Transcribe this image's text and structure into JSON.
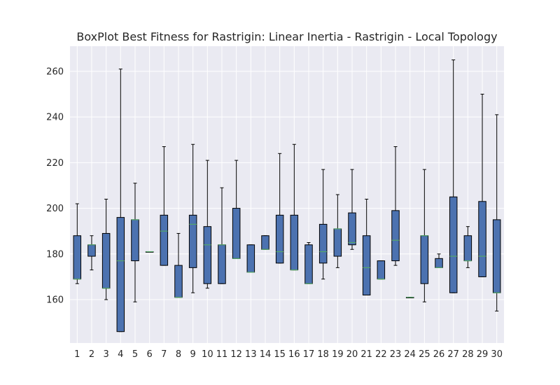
{
  "chart_data": {
    "type": "box",
    "title": "BoxPlot Best Fitness for Rastrigin: Linear Inertia - Rastrigin - Local Topology",
    "xlabel": "",
    "ylabel": "",
    "categories": [
      "1",
      "2",
      "3",
      "4",
      "5",
      "6",
      "7",
      "8",
      "9",
      "10",
      "11",
      "12",
      "13",
      "14",
      "15",
      "16",
      "17",
      "18",
      "19",
      "20",
      "21",
      "22",
      "23",
      "24",
      "25",
      "26",
      "27",
      "28",
      "29",
      "30"
    ],
    "ylim": [
      141,
      271
    ],
    "yticks": [
      160,
      180,
      200,
      220,
      240,
      260
    ],
    "grid": true,
    "boxes": [
      {
        "min": 167,
        "q1": 169,
        "median": 169,
        "q3": 188,
        "max": 202
      },
      {
        "min": 173,
        "q1": 179,
        "median": 184,
        "q3": 184,
        "max": 188
      },
      {
        "min": 160,
        "q1": 165,
        "median": 165,
        "q3": 189,
        "max": 204
      },
      {
        "min": 146,
        "q1": 146,
        "median": 177,
        "q3": 196,
        "max": 261
      },
      {
        "min": 159,
        "q1": 177,
        "median": 195,
        "q3": 195,
        "max": 211
      },
      {
        "min": 181,
        "q1": 181,
        "median": 181,
        "q3": 181,
        "max": 181
      },
      {
        "min": 175,
        "q1": 175,
        "median": 190,
        "q3": 197,
        "max": 227
      },
      {
        "min": 161,
        "q1": 161,
        "median": 161,
        "q3": 175,
        "max": 189
      },
      {
        "min": 163,
        "q1": 174,
        "median": 193,
        "q3": 197,
        "max": 228
      },
      {
        "min": 165,
        "q1": 167,
        "median": 184,
        "q3": 192,
        "max": 221
      },
      {
        "min": 167,
        "q1": 167,
        "median": 184,
        "q3": 184,
        "max": 209
      },
      {
        "min": 178,
        "q1": 178,
        "median": 178,
        "q3": 200,
        "max": 221
      },
      {
        "min": 172,
        "q1": 172,
        "median": 172,
        "q3": 184,
        "max": 184
      },
      {
        "min": 182,
        "q1": 182,
        "median": 182,
        "q3": 188,
        "max": 188
      },
      {
        "min": 176,
        "q1": 176,
        "median": 181,
        "q3": 197,
        "max": 224
      },
      {
        "min": 173,
        "q1": 173,
        "median": 173,
        "q3": 197,
        "max": 228
      },
      {
        "min": 167,
        "q1": 167,
        "median": 167,
        "q3": 184,
        "max": 185
      },
      {
        "min": 169,
        "q1": 176,
        "median": 181,
        "q3": 193,
        "max": 217
      },
      {
        "min": 174,
        "q1": 179,
        "median": 191,
        "q3": 191,
        "max": 206
      },
      {
        "min": 182,
        "q1": 184,
        "median": 185,
        "q3": 198,
        "max": 217
      },
      {
        "min": 162,
        "q1": 162,
        "median": 174,
        "q3": 188,
        "max": 204
      },
      {
        "min": 169,
        "q1": 169,
        "median": 169,
        "q3": 177,
        "max": 177
      },
      {
        "min": 175,
        "q1": 177,
        "median": 186,
        "q3": 199,
        "max": 227
      },
      {
        "min": 161,
        "q1": 161,
        "median": 161,
        "q3": 161,
        "max": 161
      },
      {
        "min": 159,
        "q1": 167,
        "median": 188,
        "q3": 188,
        "max": 217
      },
      {
        "min": 174,
        "q1": 174,
        "median": 174,
        "q3": 178,
        "max": 180
      },
      {
        "min": 163,
        "q1": 163,
        "median": 179,
        "q3": 205,
        "max": 265
      },
      {
        "min": 174,
        "q1": 177,
        "median": 177,
        "q3": 188,
        "max": 192
      },
      {
        "min": 170,
        "q1": 170,
        "median": 179,
        "q3": 203,
        "max": 250
      },
      {
        "min": 155,
        "q1": 163,
        "median": 163,
        "q3": 195,
        "max": 241
      }
    ],
    "colors": {
      "background": "#eaeaf2",
      "grid": "#ffffff",
      "box_fill": "#4c72b0",
      "box_edge": "#000000",
      "median": "#55a868",
      "whisker": "#000000",
      "text": "#262626"
    }
  }
}
